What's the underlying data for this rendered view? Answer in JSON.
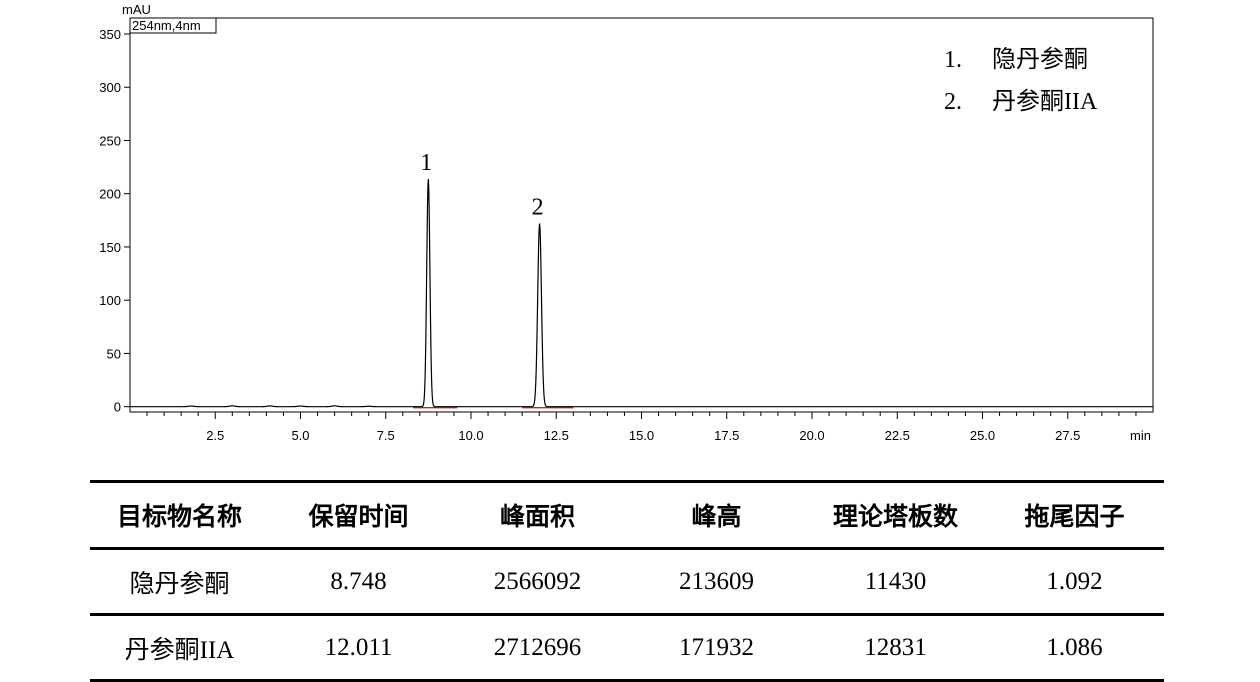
{
  "chart_data": {
    "type": "line",
    "y_unit_label": "mAU",
    "x_unit_label": "min",
    "detector_label": "254nm,4nm",
    "xlim": [
      0,
      30
    ],
    "ylim": [
      -5,
      365
    ],
    "x_ticks": [
      2.5,
      5.0,
      7.5,
      10.0,
      12.5,
      15.0,
      17.5,
      20.0,
      22.5,
      25.0,
      27.5
    ],
    "x_tick_labels": [
      "2.5",
      "5.0",
      "7.5",
      "10.0",
      "12.5",
      "15.0",
      "17.5",
      "20.0",
      "22.5",
      "25.0",
      "27.5"
    ],
    "y_ticks": [
      0,
      50,
      100,
      150,
      200,
      250,
      300,
      350
    ],
    "y_tick_labels": [
      "0",
      "50",
      "100",
      "150",
      "200",
      "250",
      "300",
      "350"
    ],
    "grid": false,
    "legend_placement": "top-right",
    "legend": [
      {
        "num": "1.",
        "name": "隐丹参酮"
      },
      {
        "num": "2.",
        "name": "丹参酮IIA"
      }
    ],
    "peaks": [
      {
        "label": "1",
        "retention_time": 8.748,
        "height_mAU": 214,
        "width_min": 0.11
      },
      {
        "label": "2",
        "retention_time": 12.011,
        "height_mAU": 172,
        "width_min": 0.13
      }
    ],
    "baseline_segments": [
      [
        8.3,
        9.6
      ],
      [
        11.5,
        13.0
      ]
    ],
    "trace_color": "#000000",
    "baseline_color": "#d02020"
  },
  "table": {
    "headers": [
      "目标物名称",
      "保留时间",
      "峰面积",
      "峰高",
      "理论塔板数",
      "拖尾因子"
    ],
    "rows": [
      [
        "隐丹参酮",
        "8.748",
        "2566092",
        "213609",
        "11430",
        "1.092"
      ],
      [
        "丹参酮IIA",
        "12.011",
        "2712696",
        "171932",
        "12831",
        "1.086"
      ]
    ]
  }
}
